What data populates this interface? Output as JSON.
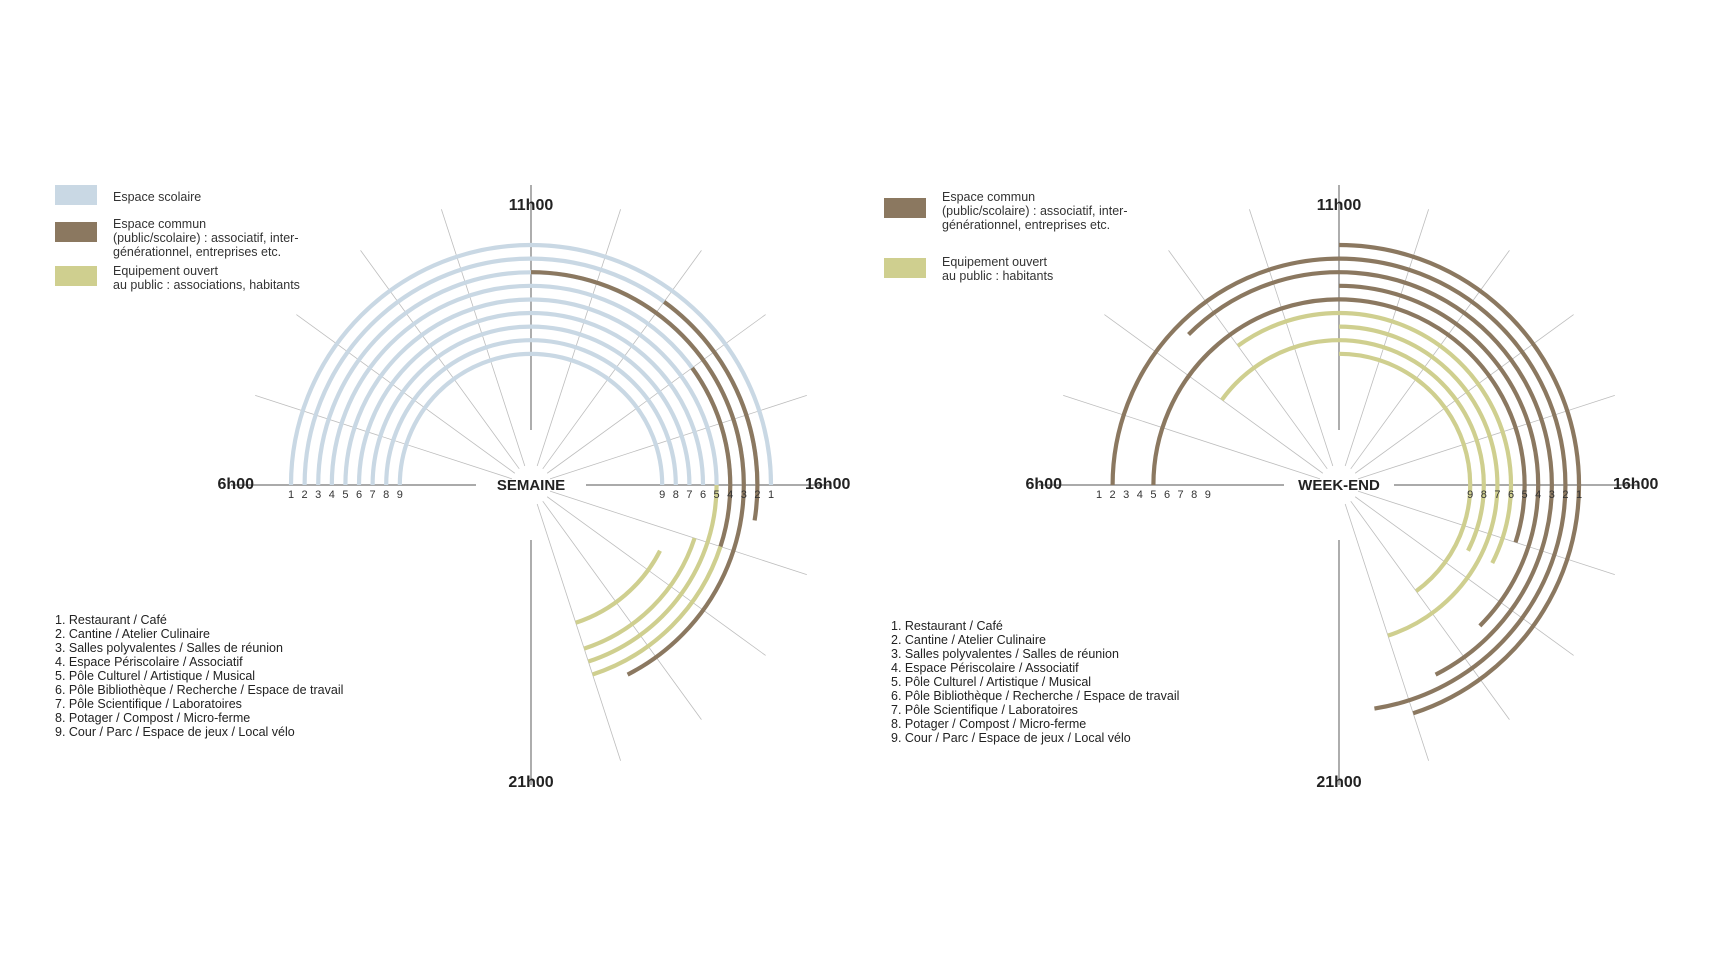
{
  "colors": {
    "scolaire": "#c9d8e4",
    "commun": "#8b7860",
    "public": "#cfcf8f",
    "grid": "#bdbdbd",
    "axis": "#777777"
  },
  "time_labels": {
    "top": "11h00",
    "left": "6h00",
    "right": "16h00",
    "bottom": "21h00"
  },
  "ring_numbers": [
    "1",
    "2",
    "3",
    "4",
    "5",
    "6",
    "7",
    "8",
    "9"
  ],
  "places": [
    "1. Restaurant / Café",
    "2. Cantine / Atelier Culinaire",
    "3. Salles polyvalentes / Salles de réunion",
    "4. Espace Périscolaire / Associatif",
    "5. Pôle Culturel / Artistique / Musical",
    "6. Pôle Bibliothèque / Recherche / Espace de travail",
    "7. Pôle Scientifique / Laboratoires",
    "8. Potager / Compost / Micro-ferme",
    "9. Cour / Parc / Espace de jeux / Local vélo"
  ],
  "semaine": {
    "center_label": "SEMAINE",
    "legend": [
      {
        "key": "scolaire",
        "text": "Espace scolaire"
      },
      {
        "key": "commun",
        "text": "Espace commun\n(public/scolaire) : associatif, inter-\ngénérationnel, entreprises etc."
      },
      {
        "key": "public",
        "text": "Equipement ouvert\nau public : associations, habitants"
      }
    ],
    "rings": [
      {
        "ring": 1,
        "segments": [
          {
            "use": "scolaire",
            "from": "6h00",
            "to": "16h00"
          }
        ]
      },
      {
        "ring": 2,
        "segments": [
          {
            "use": "scolaire",
            "from": "6h00",
            "to": "16h00"
          },
          {
            "use": "commun",
            "from": "13h00",
            "to": "16h30"
          }
        ]
      },
      {
        "ring": 3,
        "segments": [
          {
            "use": "scolaire",
            "from": "6h00",
            "to": "16h00"
          },
          {
            "use": "commun",
            "from": "11h00",
            "to": "19h30"
          }
        ]
      },
      {
        "ring": 4,
        "segments": [
          {
            "use": "scolaire",
            "from": "6h00",
            "to": "16h00"
          },
          {
            "use": "commun",
            "from": "14h00",
            "to": "17h00"
          },
          {
            "use": "public",
            "from": "17h00",
            "to": "20h00"
          }
        ]
      },
      {
        "ring": 5,
        "segments": [
          {
            "use": "scolaire",
            "from": "6h00",
            "to": "16h00"
          },
          {
            "use": "public",
            "from": "16h00",
            "to": "20h00"
          }
        ]
      },
      {
        "ring": 6,
        "segments": [
          {
            "use": "scolaire",
            "from": "6h00",
            "to": "16h00"
          },
          {
            "use": "public",
            "from": "17h00",
            "to": "20h00"
          }
        ]
      },
      {
        "ring": 7,
        "segments": [
          {
            "use": "scolaire",
            "from": "6h00",
            "to": "16h00"
          }
        ]
      },
      {
        "ring": 8,
        "segments": [
          {
            "use": "scolaire",
            "from": "6h00",
            "to": "16h00"
          },
          {
            "use": "public",
            "from": "17h30",
            "to": "20h00"
          }
        ]
      },
      {
        "ring": 9,
        "segments": [
          {
            "use": "scolaire",
            "from": "6h00",
            "to": "16h00"
          }
        ]
      }
    ]
  },
  "weekend": {
    "center_label": "WEEK-END",
    "legend": [
      {
        "key": "commun",
        "text": "Espace commun\n(public/scolaire) : associatif, inter-\ngénérationnel, entreprises etc."
      },
      {
        "key": "public",
        "text": "Equipement ouvert\nau public : habitants"
      }
    ],
    "rings": [
      {
        "ring": 1,
        "segments": [
          {
            "use": "commun",
            "from": "11h00",
            "to": "20h00"
          }
        ]
      },
      {
        "ring": 2,
        "segments": [
          {
            "use": "commun",
            "from": "6h00",
            "to": "20h30"
          }
        ]
      },
      {
        "ring": 3,
        "segments": [
          {
            "use": "commun",
            "from": "8h30",
            "to": "19h30"
          }
        ]
      },
      {
        "ring": 4,
        "segments": [
          {
            "use": "commun",
            "from": "11h00",
            "to": "18h30"
          }
        ]
      },
      {
        "ring": 5,
        "segments": [
          {
            "use": "commun",
            "from": "6h00",
            "to": "17h00"
          }
        ]
      },
      {
        "ring": 6,
        "segments": [
          {
            "use": "public",
            "from": "9h00",
            "to": "17h30"
          }
        ]
      },
      {
        "ring": 7,
        "segments": [
          {
            "use": "public",
            "from": "11h00",
            "to": "20h00"
          }
        ]
      },
      {
        "ring": 8,
        "segments": [
          {
            "use": "public",
            "from": "8h00",
            "to": "17h30"
          }
        ]
      },
      {
        "ring": 9,
        "segments": [
          {
            "use": "public",
            "from": "11h00",
            "to": "19h00"
          }
        ]
      }
    ]
  }
}
